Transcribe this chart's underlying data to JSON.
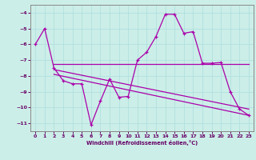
{
  "xlabel": "Windchill (Refroidissement éolien,°C)",
  "xlim": [
    -0.5,
    23.5
  ],
  "ylim": [
    -11.5,
    -3.5
  ],
  "yticks": [
    -11,
    -10,
    -9,
    -8,
    -7,
    -6,
    -5,
    -4
  ],
  "xticks": [
    0,
    1,
    2,
    3,
    4,
    5,
    6,
    7,
    8,
    9,
    10,
    11,
    12,
    13,
    14,
    15,
    16,
    17,
    18,
    19,
    20,
    21,
    22,
    23
  ],
  "bg_color": "#cceee8",
  "line_color": "#aa00aa",
  "line1_x": [
    0,
    1,
    2,
    3,
    4,
    5,
    6,
    7,
    8,
    9,
    10,
    11,
    12,
    13,
    14,
    15,
    16,
    17,
    18,
    19,
    20,
    21,
    22,
    23
  ],
  "line1_y": [
    -6.0,
    -5.0,
    -7.5,
    -8.3,
    -8.5,
    -8.5,
    -11.1,
    -9.6,
    -8.2,
    -9.35,
    -9.3,
    -7.0,
    -6.5,
    -5.5,
    -4.1,
    -4.1,
    -5.3,
    -5.2,
    -7.2,
    -7.2,
    -7.15,
    -9.0,
    -10.1,
    -10.5
  ],
  "line2_x": [
    2,
    23
  ],
  "line2_y": [
    -7.25,
    -7.25
  ],
  "line3_x": [
    2,
    23
  ],
  "line3_y": [
    -7.6,
    -10.1
  ],
  "line4_x": [
    2,
    23
  ],
  "line4_y": [
    -7.9,
    -10.5
  ]
}
